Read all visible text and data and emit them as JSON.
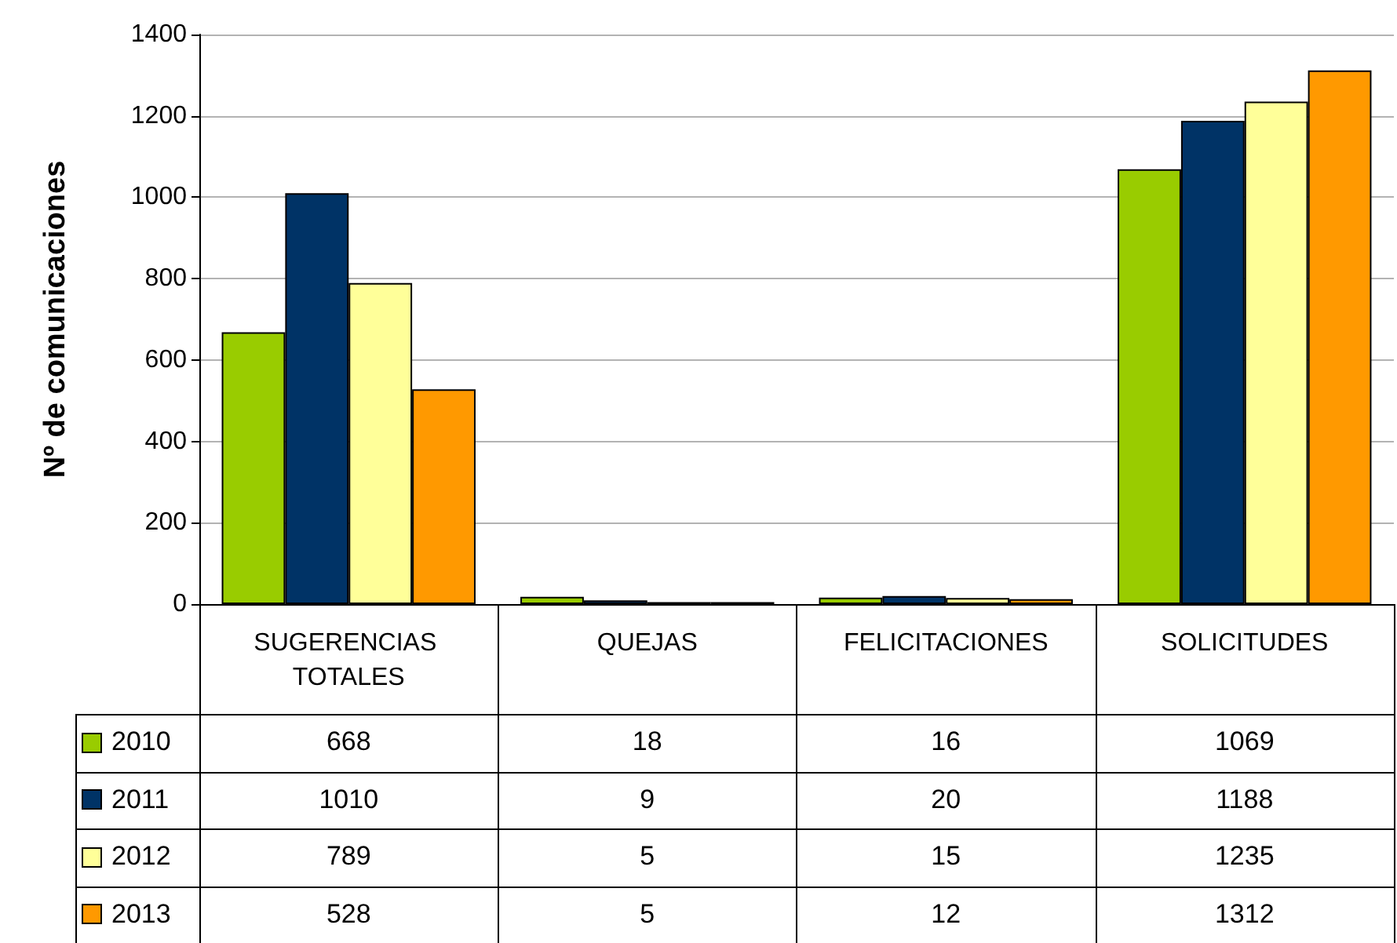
{
  "chart_data": {
    "type": "bar",
    "ylabel": "Nº de comunicaciones",
    "categories": [
      "SUGERENCIAS TOTALES",
      "QUEJAS",
      "FELICITACIONES",
      "SOLICITUDES"
    ],
    "series": [
      {
        "name": "2010",
        "color": "#99cc00",
        "values": [
          668,
          18,
          16,
          1069
        ]
      },
      {
        "name": "2011",
        "color": "#003366",
        "values": [
          1010,
          9,
          20,
          1188
        ]
      },
      {
        "name": "2012",
        "color": "#ffff99",
        "values": [
          789,
          5,
          15,
          1235
        ]
      },
      {
        "name": "2013",
        "color": "#ff9900",
        "values": [
          528,
          5,
          12,
          1312
        ]
      }
    ],
    "ylim": [
      0,
      1400
    ],
    "yticks": [
      0,
      200,
      400,
      600,
      800,
      1000,
      1200,
      1400
    ],
    "grid": "y",
    "data_labels": true,
    "legend": "bottom left"
  }
}
